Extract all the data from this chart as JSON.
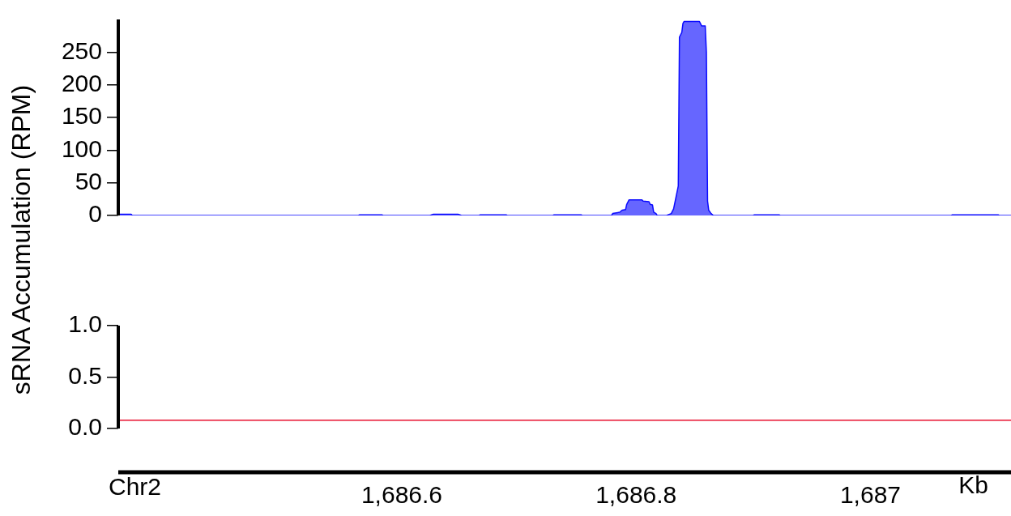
{
  "chart_data": [
    {
      "type": "area",
      "ylabel": "sRNA Accumulation (RPM)",
      "xlim": [
        1686.358,
        1687.12
      ],
      "ylim": [
        0,
        300
      ],
      "yticks": [
        0,
        50,
        100,
        150,
        200,
        250
      ],
      "tick_labels": "y",
      "grid": false,
      "legend": false,
      "series": [
        {
          "color": "#6666ff",
          "x": [
            1686.358,
            1686.359,
            1686.369,
            1686.37,
            1686.563,
            1686.564,
            1686.583,
            1686.584,
            1686.624,
            1686.627,
            1686.648,
            1686.651,
            1686.666,
            1686.667,
            1686.689,
            1686.69,
            1686.729,
            1686.73,
            1686.753,
            1686.754,
            1686.779,
            1686.78,
            1686.786,
            1686.788,
            1686.791,
            1686.792,
            1686.794,
            1686.805,
            1686.806,
            1686.811,
            1686.812,
            1686.814,
            1686.815,
            1686.817,
            1686.818,
            1686.826,
            1686.83,
            1686.832,
            1686.836,
            1686.837,
            1686.839,
            1686.84,
            1686.841,
            1686.854,
            1686.856,
            1686.859,
            1686.86,
            1686.861,
            1686.862,
            1686.864,
            1686.866,
            1686.9,
            1686.901,
            1686.922,
            1686.923,
            1687.069,
            1687.07,
            1687.109,
            1687.11,
            1687.12
          ],
          "values": [
            0,
            2,
            2,
            0,
            0,
            1,
            1,
            0,
            0,
            2,
            2,
            0,
            0,
            1,
            1,
            0,
            0,
            1,
            1,
            0,
            0,
            3,
            5,
            8,
            9,
            17,
            24,
            24,
            22,
            21,
            17,
            16,
            5,
            3,
            0,
            0,
            3,
            10,
            45,
            273,
            280,
            294,
            297,
            297,
            290,
            290,
            250,
            22,
            8,
            3,
            0,
            0,
            1,
            1,
            0,
            0,
            1,
            1,
            0,
            0
          ]
        }
      ]
    },
    {
      "type": "line",
      "xlabel": "Kb",
      "annotations": [
        "Chr2"
      ],
      "xlim": [
        1686.358,
        1687.12
      ],
      "ylim": [
        0,
        1
      ],
      "yticks": [
        {
          "value": 0,
          "label": "0.0"
        },
        {
          "value": 0.5,
          "label": "0.5"
        },
        {
          "value": 1,
          "label": "1.0"
        }
      ],
      "xticks": [
        {
          "value": 1686.6,
          "label": "1,686.6"
        },
        {
          "value": 1686.8,
          "label": "1,686.8"
        },
        {
          "value": 1687,
          "label": "1,687"
        }
      ],
      "grid": false,
      "legend": false,
      "series": [
        {
          "color": "#e8102e",
          "x": [
            1686.358,
            1687.12
          ],
          "values": [
            0.08,
            0.08
          ]
        }
      ]
    }
  ]
}
